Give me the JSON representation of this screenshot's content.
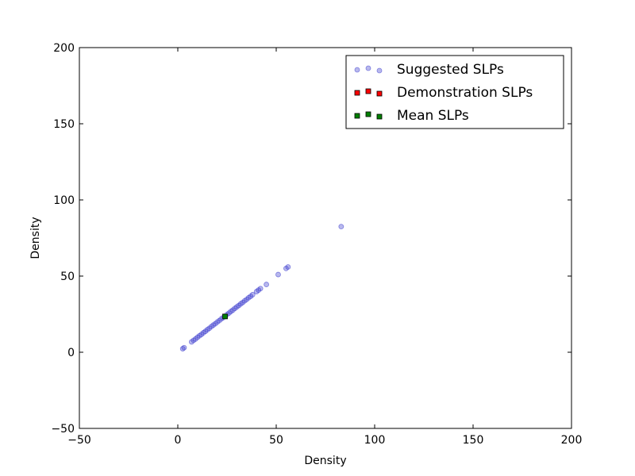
{
  "chart_data": {
    "type": "scatter",
    "xlabel": "Density",
    "ylabel": "Density",
    "xlim": [
      -50,
      200
    ],
    "ylim": [
      -50,
      200
    ],
    "xticks": [
      -50,
      0,
      50,
      100,
      150,
      200
    ],
    "yticks": [
      -50,
      0,
      50,
      100,
      150,
      200
    ],
    "grid": false,
    "legend": "top-right",
    "series": [
      {
        "name": "Suggested SLPs",
        "marker": "circle",
        "color": "#3333cc",
        "points": [
          [
            2.5,
            2.3
          ],
          [
            3.2,
            3.0
          ],
          [
            7,
            6.8
          ],
          [
            8,
            7.8
          ],
          [
            9,
            8.7
          ],
          [
            10,
            9.8
          ],
          [
            11,
            10.8
          ],
          [
            12,
            11.7
          ],
          [
            13,
            12.8
          ],
          [
            14,
            13.7
          ],
          [
            15,
            14.8
          ],
          [
            16,
            15.7
          ],
          [
            17,
            16.8
          ],
          [
            18,
            17.8
          ],
          [
            19,
            18.7
          ],
          [
            20,
            19.8
          ],
          [
            21,
            20.7
          ],
          [
            22,
            21.8
          ],
          [
            23,
            22.7
          ],
          [
            25,
            24.8
          ],
          [
            26,
            25.7
          ],
          [
            27,
            26.8
          ],
          [
            28,
            27.7
          ],
          [
            29,
            28.8
          ],
          [
            30,
            29.8
          ],
          [
            31,
            30.7
          ],
          [
            32,
            31.8
          ],
          [
            33,
            32.7
          ],
          [
            34,
            33.8
          ],
          [
            35,
            34.7
          ],
          [
            36,
            35.8
          ],
          [
            37,
            36.7
          ],
          [
            38,
            37.8
          ],
          [
            40,
            39.8
          ],
          [
            41,
            40.8
          ],
          [
            42,
            41.8
          ],
          [
            45,
            44.5
          ],
          [
            51,
            51
          ],
          [
            55,
            55
          ],
          [
            56,
            56
          ],
          [
            83,
            82.5
          ]
        ]
      },
      {
        "name": "Demonstration SLPs",
        "marker": "square",
        "color": "#ff0000",
        "points": []
      },
      {
        "name": "Mean SLPs",
        "marker": "square",
        "color": "#008000",
        "points": [
          [
            24,
            23.5
          ]
        ]
      }
    ]
  }
}
